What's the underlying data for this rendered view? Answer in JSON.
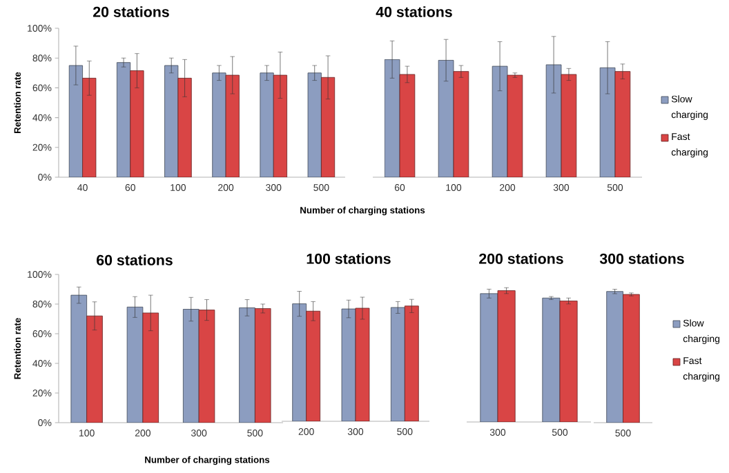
{
  "chart_data": [
    {
      "type": "bar",
      "title": "20 stations",
      "xlabel": "Number of charging stations",
      "ylabel": "Retention rate",
      "categories": [
        "40",
        "60",
        "100",
        "200",
        "300",
        "500"
      ],
      "series": [
        {
          "color": "#8c9dc0",
          "values": [
            75,
            77,
            75,
            70,
            70,
            70
          ],
          "errors": [
            13,
            3,
            5,
            5,
            5,
            5
          ]
        },
        {
          "color": "#d94545",
          "values": [
            66.5,
            71.5,
            66.5,
            68.5,
            68.5,
            67
          ],
          "errors": [
            11.5,
            11.5,
            12.5,
            12.5,
            15.5,
            14.5
          ]
        }
      ],
      "ylim": [
        0,
        100
      ],
      "yticks": [
        {
          "value": 0,
          "label": "0%"
        },
        {
          "value": 20,
          "label": "20%"
        },
        {
          "value": 40,
          "label": "40%"
        },
        {
          "value": 60,
          "label": "60%"
        },
        {
          "value": 80,
          "label": "80%"
        },
        {
          "value": 100,
          "label": "100%"
        }
      ],
      "legend": false
    },
    {
      "type": "bar",
      "title": "40 stations",
      "categories": [
        "60",
        "100",
        "200",
        "300",
        "500"
      ],
      "series": [
        {
          "name": "Slow charging",
          "color": "#8c9dc0",
          "values": [
            79,
            78.5,
            74.5,
            75.5,
            73.5
          ],
          "errors": [
            12.5,
            14,
            16.5,
            19,
            17.5
          ]
        },
        {
          "name": "Fast charging",
          "color": "#d94545",
          "values": [
            69,
            71,
            68.5,
            69,
            71
          ],
          "errors": [
            5.5,
            4,
            1.5,
            4,
            5
          ]
        }
      ],
      "ylim": [
        0,
        100
      ],
      "tick_labels": "x",
      "legend": "right"
    },
    {
      "type": "bar",
      "title": "60 stations",
      "xlabel": "Number of charging stations",
      "ylabel": "Retention rate",
      "categories": [
        "100",
        "200",
        "300",
        "500"
      ],
      "series": [
        {
          "color": "#8c9dc0",
          "values": [
            86,
            78,
            76.5,
            77.5
          ],
          "errors": [
            5.5,
            7,
            8,
            5.5
          ]
        },
        {
          "color": "#d94545",
          "values": [
            72,
            74,
            76,
            77
          ],
          "errors": [
            9.5,
            12,
            7,
            3
          ]
        }
      ],
      "ylim": [
        0,
        100
      ],
      "yticks": [
        {
          "value": 0,
          "label": "0%"
        },
        {
          "value": 20,
          "label": "20%"
        },
        {
          "value": 40,
          "label": "40%"
        },
        {
          "value": 60,
          "label": "60%"
        },
        {
          "value": 80,
          "label": "80%"
        },
        {
          "value": 100,
          "label": "100%"
        }
      ],
      "legend": false
    },
    {
      "type": "bar",
      "title": "100 stations",
      "categories": [
        "200",
        "300",
        "500"
      ],
      "series": [
        {
          "color": "#8c9dc0",
          "values": [
            80,
            76.5,
            77.5
          ],
          "errors": [
            8.5,
            6,
            4
          ]
        },
        {
          "color": "#d94545",
          "values": [
            75,
            77,
            78.5
          ],
          "errors": [
            6.5,
            7.5,
            4.5
          ]
        }
      ],
      "ylim": [
        0,
        100
      ],
      "tick_labels": "x",
      "legend": false
    },
    {
      "type": "bar",
      "title": "200 stations",
      "categories": [
        "300",
        "500"
      ],
      "series": [
        {
          "color": "#8c9dc0",
          "values": [
            87,
            84
          ],
          "errors": [
            3,
            1
          ]
        },
        {
          "color": "#d94545",
          "values": [
            89,
            82
          ],
          "errors": [
            2,
            2
          ]
        }
      ],
      "ylim": [
        0,
        100
      ],
      "tick_labels": "x",
      "legend": false
    },
    {
      "type": "bar",
      "title": "300 stations",
      "categories": [
        "500"
      ],
      "series": [
        {
          "name": "Slow charging",
          "color": "#8c9dc0",
          "values": [
            88.5
          ],
          "errors": [
            1.5
          ]
        },
        {
          "name": "Fast charging",
          "color": "#d94545",
          "values": [
            86.5
          ],
          "errors": [
            1
          ]
        }
      ],
      "ylim": [
        0,
        100
      ],
      "tick_labels": "x",
      "legend": "right"
    }
  ]
}
